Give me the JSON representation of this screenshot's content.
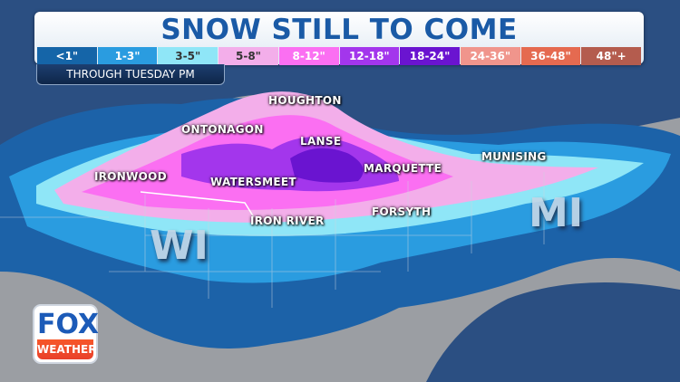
{
  "header": {
    "title": "SNOW STILL TO COME",
    "subtitle": "THROUGH TUESDAY PM"
  },
  "legend": [
    {
      "label": "<1\"",
      "color": "#1565a8"
    },
    {
      "label": "1-3\"",
      "color": "#2a9ce0"
    },
    {
      "label": "3-5\"",
      "color": "#8fe6f7"
    },
    {
      "label": "5-8\"",
      "color": "#f3aeea"
    },
    {
      "label": "8-12\"",
      "color": "#fb6ff2"
    },
    {
      "label": "12-18\"",
      "color": "#a336ec"
    },
    {
      "label": "18-24\"",
      "color": "#6a14d0"
    },
    {
      "label": "24-36\"",
      "color": "#f0958c"
    },
    {
      "label": "36-48\"",
      "color": "#e56a50"
    },
    {
      "label": "48\"+",
      "color": "#b45c4e"
    }
  ],
  "cities": [
    "HOUGHTON",
    "ONTONAGON",
    "LANSE",
    "MARQUETTE",
    "MUNISING",
    "IRONWOOD",
    "WATERSMEET",
    "IRON RIVER",
    "FORSYTH"
  ],
  "states": [
    "WI",
    "MI"
  ],
  "logo": {
    "top": "FOX",
    "bottom": "WEATHER"
  }
}
